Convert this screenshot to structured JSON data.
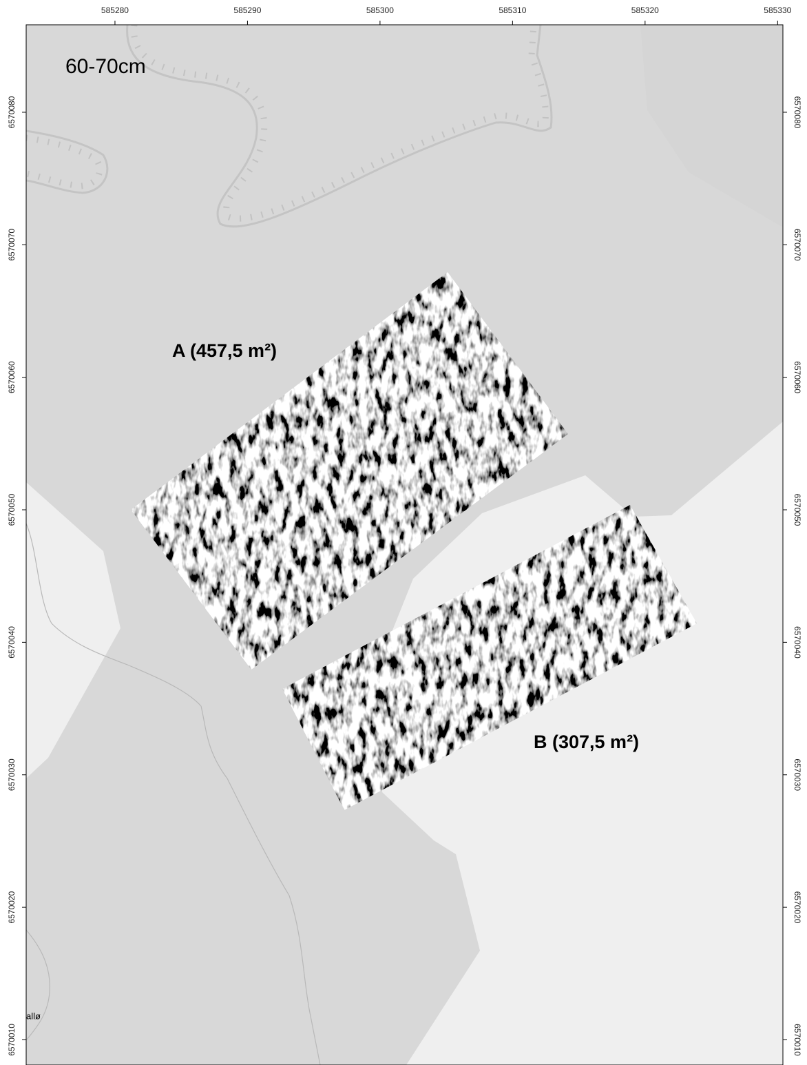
{
  "map": {
    "label": "60-70cm",
    "xlim": [
      585273.3,
      585330.4
    ],
    "ylim": [
      6570008.1,
      6570086.6
    ],
    "xticks": [
      585280,
      585290,
      585300,
      585310,
      585320,
      585330
    ],
    "yticks": [
      6570010,
      6570020,
      6570030,
      6570040,
      6570050,
      6570060,
      6570070,
      6570080
    ],
    "areas": [
      {
        "label": "A (457,5 m²)"
      },
      {
        "label": "B (307,5 m²)"
      }
    ],
    "place_label": "allø"
  }
}
